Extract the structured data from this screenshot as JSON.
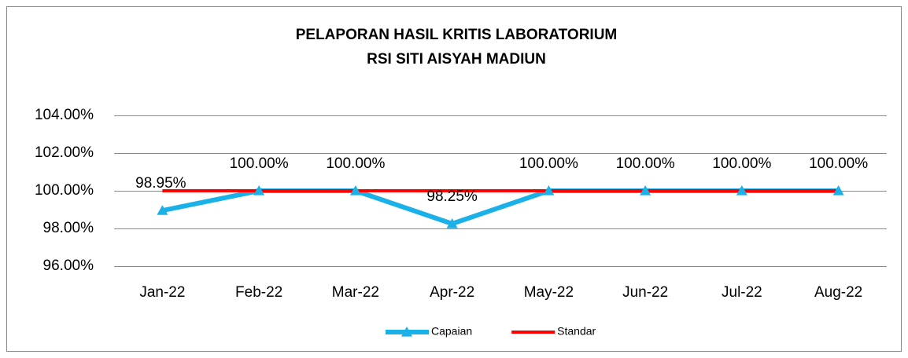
{
  "chart_data": {
    "type": "line",
    "title": "PELAPORAN HASIL KRITIS LABORATORIUM",
    "subtitle": "RSI SITI AISYAH MADIUN",
    "categories": [
      "Jan-22",
      "Feb-22",
      "Mar-22",
      "Apr-22",
      "May-22",
      "Jun-22",
      "Jul-22",
      "Aug-22"
    ],
    "series": [
      {
        "name": "Capaian",
        "color": "#1ab0e8",
        "marker": "triangle",
        "values": [
          98.95,
          100,
          100,
          98.25,
          100,
          100,
          100,
          100
        ],
        "value_labels": [
          "98.95%",
          "100.00%",
          "100.00%",
          "98.25%",
          "100.00%",
          "100.00%",
          "100.00%",
          "100.00%"
        ]
      },
      {
        "name": "Standar",
        "color": "#ff0000",
        "values": [
          100,
          100,
          100,
          100,
          100,
          100,
          100,
          100
        ]
      }
    ],
    "ylim": [
      96,
      104
    ],
    "yticks": [
      {
        "value": 96,
        "label": "96.00%"
      },
      {
        "value": 98,
        "label": "98.00%"
      },
      {
        "value": 100,
        "label": "100.00%"
      },
      {
        "value": 102,
        "label": "102.00%"
      },
      {
        "value": 104,
        "label": "104.00%"
      }
    ],
    "grid": true,
    "legend": "bottom"
  }
}
